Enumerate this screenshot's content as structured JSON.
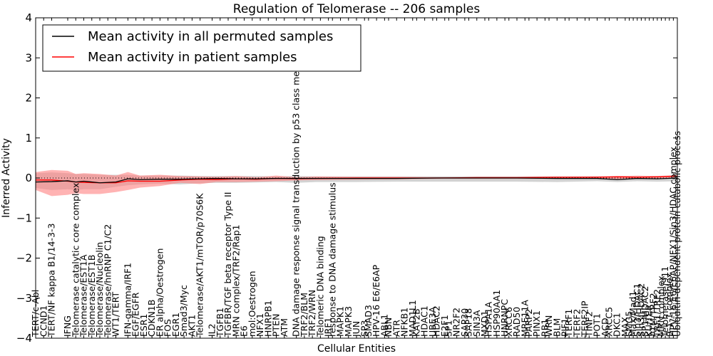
{
  "chart_data": {
    "type": "line",
    "title": "Regulation of Telomerase -- 206 samples",
    "xlabel": "Cellular Entities",
    "ylabel": "Inferred Activity",
    "ylim": [
      -4,
      4
    ],
    "yticks": [
      -4,
      -3,
      -2,
      -1,
      0,
      1,
      2,
      3,
      4
    ],
    "ytick_labels": [
      "−4",
      "−3",
      "−2",
      "−1",
      "0",
      "1",
      "2",
      "3",
      "4"
    ],
    "xlim": [
      0,
      160
    ],
    "reference_line": 0,
    "legend": {
      "placement": "top-left",
      "entries": [
        {
          "label": "Mean activity in all permuted samples",
          "color": "#000000"
        },
        {
          "label": "Mean activity in patient samples",
          "color": "#ff0000"
        }
      ]
    },
    "colors": {
      "patient": "#ff0000",
      "permuted": "#000000",
      "patient_band": "#ff8080",
      "permuted_band": "#bfbfbf"
    },
    "entities": [
      "TERT/c-Abl",
      "CCND1",
      "TERT/NF kappa B1/14-3-3",
      "IFNG",
      "Telomerase catalytic core complex",
      "Telomerase/EST1A",
      "Telomerase/EST1B",
      "Telomerase/Nucleolin",
      "Telomerase/hnRNP C1/C2",
      "WT1/TERT",
      "IFN-gamma/IRF1",
      "EGF/EGFR",
      "ESR1",
      "CDKN1B",
      "ER alpha/Oestrogen",
      "FOS",
      "EGR1",
      "Smad3/Myc",
      "AKT1",
      "Telomerase/AKT1/mTOR/p70S6K",
      "IL2",
      "TGFB1",
      "TGFBR/TGF beta receptor Type II",
      "MRN complex/TRF2/Rap1",
      "E6",
      "mol:Oestrogen",
      "NFX1",
      "HNRPB1",
      "PTEN",
      "ATM",
      "DNA damage response signal transduction by p53 class mediator",
      "TRF2/BLM",
      "TRF2/WRN",
      "Telomeric DNA binding",
      "IRF1",
      "response to DNA damage stimulus",
      "MAPK1",
      "MAPK3",
      "JUN",
      "SP3",
      "SMAD3",
      "HPV-16 E6/E6AP",
      "ABL1",
      "NBN",
      "ATR",
      "NFKB1",
      "MAD1L1",
      "KAT2B",
      "HDAC1",
      "UBE3A",
      "HDAC2",
      "E2F1",
      "SP1",
      "NR2F2",
      "SAP30",
      "SAP18",
      "SIN3A",
      "MXD1",
      "HSPA1A",
      "HSP90AA1",
      "HNRNPC",
      "XRCC6",
      "RAD50",
      "MRE11A",
      "PARP2",
      "PINX1",
      "RB1",
      "WRN",
      "BLM",
      "PIF1",
      "TERF1",
      "TERF2",
      "TERF2IP",
      "TINF2",
      "POT1",
      "ACD",
      "XRCC5",
      "DKC1",
      "MAX",
      "SMG5",
      "Max/Mad1",
      "Sin3/HDAC1",
      "Sin3/HDAC2",
      "SP1/HDAC2",
      "KU/TER",
      "ATM/TRF2",
      "TRF1/TRF2",
      "MRN complex",
      "Telomerase/911",
      "9-1-1 complex",
      "HPV-16 E6/E6AP/NFX1/Sin3/HDAC complex",
      "Ubiquitin-dependent protein catabolic process"
    ],
    "label_x_index": [
      0,
      2,
      4,
      8,
      10,
      12,
      14,
      16,
      18,
      20,
      23,
      25,
      27,
      29,
      31,
      33,
      35,
      37,
      39,
      41,
      44,
      46,
      48,
      50,
      52,
      54,
      56,
      58,
      60,
      62,
      65,
      67,
      69,
      71,
      73,
      74,
      76,
      78,
      80,
      82,
      83,
      85,
      87,
      88,
      90,
      92,
      94,
      95,
      97,
      99,
      100,
      102,
      103,
      105,
      107,
      108,
      110,
      112,
      113,
      115,
      117,
      118,
      120,
      122,
      123,
      125,
      127,
      128,
      130,
      132,
      133,
      135,
      137,
      138,
      140,
      142,
      143,
      145,
      147,
      148,
      149,
      150,
      151,
      152,
      153,
      154,
      155,
      156,
      157,
      158,
      159,
      160
    ],
    "series": [
      {
        "name": "Mean activity in all permuted samples",
        "color": "#000000",
        "x": [
          0,
          4,
          8,
          10,
          12,
          16,
          20,
          23,
          26,
          31,
          36,
          41,
          45,
          50,
          55,
          60,
          65,
          70,
          80,
          90,
          100,
          110,
          120,
          130,
          140,
          145,
          150,
          155,
          160
        ],
        "y": [
          -0.1,
          -0.09,
          -0.07,
          -0.1,
          -0.08,
          -0.12,
          -0.1,
          -0.02,
          -0.04,
          -0.03,
          -0.03,
          -0.02,
          -0.01,
          -0.02,
          -0.02,
          -0.01,
          -0.01,
          -0.01,
          -0.01,
          -0.01,
          0.0,
          0.0,
          0.0,
          -0.01,
          -0.01,
          -0.04,
          -0.01,
          -0.02,
          0.0
        ]
      },
      {
        "name": "Mean activity in patient samples",
        "color": "#ff0000",
        "x": [
          0,
          4,
          8,
          10,
          12,
          16,
          20,
          23,
          26,
          31,
          36,
          41,
          45,
          50,
          55,
          60,
          65,
          70,
          80,
          90,
          100,
          110,
          120,
          130,
          140,
          145,
          150,
          155,
          160
        ],
        "y": [
          -0.05,
          -0.05,
          -0.08,
          -0.1,
          -0.11,
          -0.12,
          -0.12,
          -0.07,
          -0.08,
          -0.08,
          -0.05,
          -0.03,
          -0.04,
          -0.02,
          -0.03,
          -0.01,
          -0.02,
          -0.01,
          0.0,
          0.0,
          0.0,
          0.01,
          0.01,
          0.02,
          0.02,
          0.03,
          0.02,
          0.03,
          0.05
        ]
      }
    ],
    "bands": [
      {
        "name": "Patient samples spread",
        "color": "#ff8080",
        "x": [
          0,
          4,
          8,
          10,
          12,
          16,
          20,
          23,
          26,
          31,
          36,
          41,
          45,
          50,
          55,
          60,
          65,
          70,
          80,
          90,
          100,
          110,
          120,
          130,
          140,
          145,
          150,
          155,
          160
        ],
        "upper": [
          0.15,
          0.2,
          0.18,
          0.1,
          0.12,
          0.1,
          0.06,
          0.15,
          0.06,
          0.08,
          0.05,
          0.04,
          0.03,
          0.05,
          0.02,
          0.06,
          0.02,
          0.04,
          0.03,
          0.03,
          0.02,
          0.02,
          0.02,
          0.03,
          0.04,
          0.05,
          0.06,
          0.05,
          0.07
        ],
        "lower": [
          -0.3,
          -0.45,
          -0.42,
          -0.38,
          -0.4,
          -0.4,
          -0.35,
          -0.3,
          -0.24,
          -0.2,
          -0.12,
          -0.15,
          -0.1,
          -0.1,
          -0.09,
          -0.08,
          -0.06,
          -0.05,
          -0.04,
          -0.03,
          -0.02,
          -0.02,
          -0.02,
          -0.02,
          -0.02,
          -0.03,
          -0.02,
          -0.03,
          0.02
        ]
      },
      {
        "name": "Permuted samples spread",
        "color": "#bfbfbf",
        "x": [
          0,
          4,
          8,
          10,
          12,
          16,
          20,
          23,
          26,
          31,
          36,
          41,
          45,
          50,
          55,
          60,
          65,
          70,
          80,
          90,
          100,
          110,
          120,
          130,
          140,
          145,
          150,
          155,
          160
        ],
        "upper": [
          0.12,
          0.14,
          0.12,
          0.1,
          0.1,
          0.08,
          0.08,
          0.08,
          0.06,
          0.06,
          0.06,
          0.05,
          0.05,
          0.05,
          0.05,
          0.04,
          0.05,
          0.04,
          0.04,
          0.04,
          0.04,
          0.04,
          0.04,
          0.04,
          0.04,
          0.04,
          0.04,
          0.04,
          0.04
        ],
        "lower": [
          -0.25,
          -0.3,
          -0.28,
          -0.3,
          -0.28,
          -0.28,
          -0.22,
          -0.18,
          -0.16,
          -0.14,
          -0.16,
          -0.13,
          -0.12,
          -0.12,
          -0.11,
          -0.1,
          -0.12,
          -0.1,
          -0.1,
          -0.09,
          -0.09,
          -0.09,
          -0.09,
          -0.1,
          -0.08,
          -0.1,
          -0.08,
          -0.09,
          -0.08
        ]
      }
    ]
  }
}
